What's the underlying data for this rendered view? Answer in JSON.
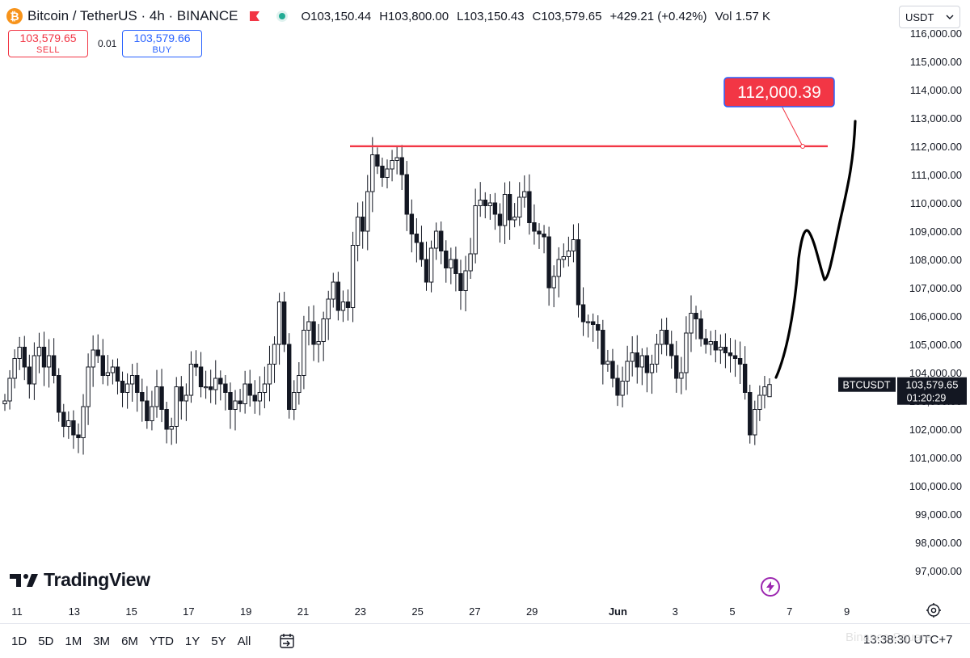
{
  "header": {
    "symbol_title": "Bitcoin / TetherUS · 4h · BINANCE",
    "ohlc": {
      "open_label": "O",
      "open": "103,150.44",
      "high_label": "H",
      "high": "103,800.00",
      "low_label": "L",
      "low": "103,150.43",
      "close_label": "C",
      "close": "103,579.65",
      "change": "+429.21 (+0.42%)",
      "volume_label": "Vol",
      "volume": "1.57 K"
    }
  },
  "trade": {
    "sell_price": "103,579.65",
    "sell_label": "SELL",
    "spread": "0.01",
    "buy_price": "103,579.66",
    "buy_label": "BUY"
  },
  "currency": {
    "selected": "USDT"
  },
  "icons": {
    "coin": "btc-coin-icon",
    "flag": "flag-icon",
    "status": "market-status-icon",
    "chevron": "chevron-down-icon",
    "brand": "tradingview-logo-icon",
    "bolt": "lightning-icon",
    "gear": "settings-gear-icon",
    "range": "date-range-icon"
  },
  "brand": {
    "name": "TradingView"
  },
  "colors": {
    "candle": "#131722",
    "target_line": "#f23645",
    "target_label_bg": "#f23645",
    "sell": "#f23645",
    "buy": "#2962ff",
    "price_label_bg": "#131722"
  },
  "chart_data": {
    "type": "candlestick",
    "title": "Bitcoin / TetherUS · 4h · BINANCE",
    "timeframe": "4h",
    "ylim": [
      96400,
      116200
    ],
    "y_ticks": [
      "116,000.00",
      "115,000.00",
      "114,000.00",
      "113,000.00",
      "112,000.00",
      "111,000.00",
      "110,000.00",
      "109,000.00",
      "108,000.00",
      "107,000.00",
      "106,000.00",
      "105,000.00",
      "104,000.00",
      "103,000.00",
      "102,000.00",
      "101,000.00",
      "100,000.00",
      "99,000.00",
      "98,000.00",
      "97,000.00"
    ],
    "x_ticks": [
      {
        "label": "11",
        "day": 11
      },
      {
        "label": "13",
        "day": 13
      },
      {
        "label": "15",
        "day": 15
      },
      {
        "label": "17",
        "day": 17
      },
      {
        "label": "19",
        "day": 19
      },
      {
        "label": "21",
        "day": 21
      },
      {
        "label": "23",
        "day": 23
      },
      {
        "label": "25",
        "day": 25
      },
      {
        "label": "27",
        "day": 27
      },
      {
        "label": "29",
        "day": 29
      },
      {
        "label": "Jun",
        "day": 32
      },
      {
        "label": "3",
        "day": 34
      },
      {
        "label": "5",
        "day": 36
      },
      {
        "label": "7",
        "day": 38
      },
      {
        "label": "9",
        "day": 40
      }
    ],
    "x_domain_days": [
      10.6,
      43.7
    ],
    "candle_step_days": 0.1667,
    "closes": [
      103000,
      103800,
      104500,
      104900,
      104200,
      103600,
      104600,
      104900,
      104200,
      104600,
      103900,
      102600,
      102100,
      102300,
      101800,
      101700,
      102800,
      104200,
      104800,
      104600,
      103900,
      104000,
      104200,
      103700,
      103300,
      103600,
      103900,
      103300,
      103000,
      102300,
      102800,
      103500,
      102700,
      102000,
      102100,
      103500,
      103000,
      103200,
      104300,
      104200,
      103500,
      103500,
      103400,
      103800,
      103600,
      103300,
      102700,
      103000,
      102900,
      103600,
      103200,
      103000,
      103300,
      103600,
      104300,
      105000,
      106500,
      105000,
      102700,
      103300,
      103900,
      105500,
      105800,
      105000,
      105100,
      105900,
      106600,
      107200,
      106200,
      106500,
      106300,
      108500,
      109500,
      109000,
      110400,
      111700,
      111300,
      110900,
      111200,
      111500,
      111600,
      111000,
      109600,
      108900,
      108600,
      108000,
      107200,
      108400,
      109000,
      108300,
      107700,
      108000,
      107500,
      106900,
      107600,
      108200,
      109900,
      110100,
      109900,
      110000,
      109600,
      109200,
      110300,
      109400,
      109500,
      110200,
      110400,
      109300,
      109000,
      108900,
      108800,
      107000,
      107400,
      108000,
      108100,
      108300,
      108700,
      106400,
      105800,
      105800,
      105700,
      105500,
      104300,
      104400,
      103800,
      103200,
      103700,
      104400,
      104700,
      104200,
      104600,
      104000,
      104300,
      105000,
      105500,
      105000,
      104600,
      103800,
      104000,
      105400,
      106100,
      105900,
      105200,
      105000,
      105100,
      104800,
      104900,
      104700,
      104600,
      104500,
      104300,
      103300,
      101800,
      102700,
      103200,
      103500,
      103580
    ],
    "annotations": {
      "target_price_label": "112,000.39",
      "target_price": 112000.39,
      "current_price_symbol": "BTCUSDT",
      "current_price": "103,579.65",
      "countdown": "01:20:29",
      "projection_path": "hand-drawn upward projection: 103,900 → 109,100 → 107,300 → 112,800"
    }
  },
  "timeframes": [
    "1D",
    "5D",
    "1M",
    "3M",
    "6M",
    "YTD",
    "1Y",
    "5Y",
    "All"
  ],
  "clock": "13:38:30 UTC+7",
  "watermark": "Binance Square"
}
